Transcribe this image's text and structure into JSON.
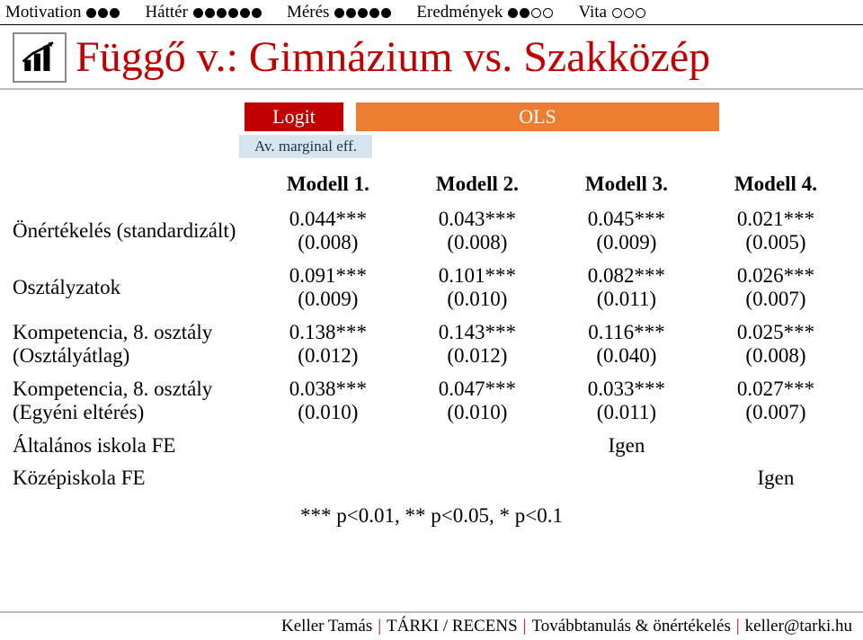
{
  "colors": {
    "accent_red": "#c00000",
    "accent_orange": "#ed7d31",
    "pale_blue": "#d6e5ee",
    "rule_gray": "#bbbbbb",
    "text": "#000000",
    "background": "#ffffff"
  },
  "progress": {
    "sections": [
      {
        "label": "Motivation",
        "total": 3,
        "filled": 3
      },
      {
        "label": "Háttér",
        "total": 6,
        "filled": 6
      },
      {
        "label": "Mérés",
        "total": 5,
        "filled": 5
      },
      {
        "label": "Eredmények",
        "total": 4,
        "filled": 2
      },
      {
        "label": "Vita",
        "total": 3,
        "filled": 0
      }
    ]
  },
  "title": "Függő v.: Gimnázium vs. Szakközép",
  "icon_name": "bar-chart-icon",
  "method_headers": {
    "logit": "Logit",
    "ols": "OLS",
    "marginal": "Av. marginal eff."
  },
  "table": {
    "columns": [
      "Modell 1.",
      "Modell 2.",
      "Modell 3.",
      "Modell 4."
    ],
    "rows": [
      {
        "label": "Önértékelés (standardizált)",
        "cells": [
          {
            "est": "0.044***",
            "se": "(0.008)"
          },
          {
            "est": "0.043***",
            "se": "(0.008)"
          },
          {
            "est": "0.045***",
            "se": "(0.009)"
          },
          {
            "est": "0.021***",
            "se": "(0.005)"
          }
        ]
      },
      {
        "label": "Osztályzatok",
        "cells": [
          {
            "est": "0.091***",
            "se": "(0.009)"
          },
          {
            "est": "0.101***",
            "se": "(0.010)"
          },
          {
            "est": "0.082***",
            "se": "(0.011)"
          },
          {
            "est": "0.026***",
            "se": "(0.007)"
          }
        ]
      },
      {
        "label": "Kompetencia, 8. osztály (Osztályátlag)",
        "cells": [
          {
            "est": "0.138***",
            "se": "(0.012)"
          },
          {
            "est": "0.143***",
            "se": "(0.012)"
          },
          {
            "est": "0.116***",
            "se": "(0.040)"
          },
          {
            "est": "0.025***",
            "se": "(0.008)"
          }
        ]
      },
      {
        "label": "Kompetencia, 8. osztály (Egyéni eltérés)",
        "cells": [
          {
            "est": "0.038***",
            "se": "(0.010)"
          },
          {
            "est": "0.047***",
            "se": "(0.010)"
          },
          {
            "est": "0.033***",
            "se": "(0.011)"
          },
          {
            "est": "0.027***",
            "se": "(0.007)"
          }
        ]
      },
      {
        "label": "Általános iskola FE",
        "cells": [
          {
            "est": "",
            "se": ""
          },
          {
            "est": "",
            "se": ""
          },
          {
            "est": "Igen",
            "se": ""
          },
          {
            "est": "",
            "se": ""
          }
        ]
      },
      {
        "label": "Középiskola FE",
        "cells": [
          {
            "est": "",
            "se": ""
          },
          {
            "est": "",
            "se": ""
          },
          {
            "est": "",
            "se": ""
          },
          {
            "est": "Igen",
            "se": ""
          }
        ]
      }
    ],
    "significance_note": "*** p<0.01, ** p<0.05, * p<0.1"
  },
  "footer": {
    "author": "Keller Tamás",
    "affil": "TÁRKI / RECENS",
    "topic": "Továbbtanulás & önértékelés",
    "email": "keller@tarki.hu"
  }
}
